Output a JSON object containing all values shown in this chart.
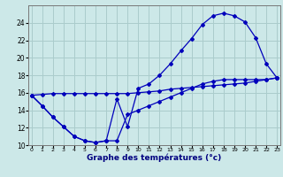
{
  "xlabel": "Graphe des températures (°c)",
  "bg_color": "#cce8e8",
  "grid_color": "#aacccc",
  "line_color": "#0000bb",
  "hours": [
    0,
    1,
    2,
    3,
    4,
    5,
    6,
    7,
    8,
    9,
    10,
    11,
    12,
    13,
    14,
    15,
    16,
    17,
    18,
    19,
    20,
    21,
    22,
    23
  ],
  "temp_main": [
    15.7,
    14.5,
    13.2,
    12.1,
    11.0,
    10.5,
    10.3,
    10.5,
    15.3,
    12.1,
    16.5,
    17.0,
    18.0,
    19.3,
    20.8,
    22.2,
    23.8,
    24.8,
    25.1,
    24.8,
    24.1,
    22.3,
    19.3,
    17.7
  ],
  "temp_min": [
    15.7,
    14.5,
    13.2,
    12.1,
    11.0,
    10.5,
    10.3,
    10.5,
    10.5,
    13.5,
    14.0,
    14.5,
    15.0,
    15.5,
    16.0,
    16.5,
    17.0,
    17.3,
    17.5,
    17.5,
    17.5,
    17.5,
    17.5,
    17.7
  ],
  "temp_straight": [
    15.7,
    15.8,
    15.9,
    15.9,
    15.9,
    15.9,
    15.9,
    15.9,
    15.9,
    15.9,
    16.0,
    16.1,
    16.2,
    16.4,
    16.5,
    16.6,
    16.7,
    16.8,
    16.9,
    17.0,
    17.1,
    17.3,
    17.5,
    17.7
  ],
  "ylim": [
    10,
    26
  ],
  "yticks": [
    10,
    12,
    14,
    16,
    18,
    20,
    22,
    24
  ],
  "xlim": [
    -0.3,
    23.3
  ],
  "xticks": [
    0,
    1,
    2,
    3,
    4,
    5,
    6,
    7,
    8,
    9,
    10,
    11,
    12,
    13,
    14,
    15,
    16,
    17,
    18,
    19,
    20,
    21,
    22,
    23
  ]
}
